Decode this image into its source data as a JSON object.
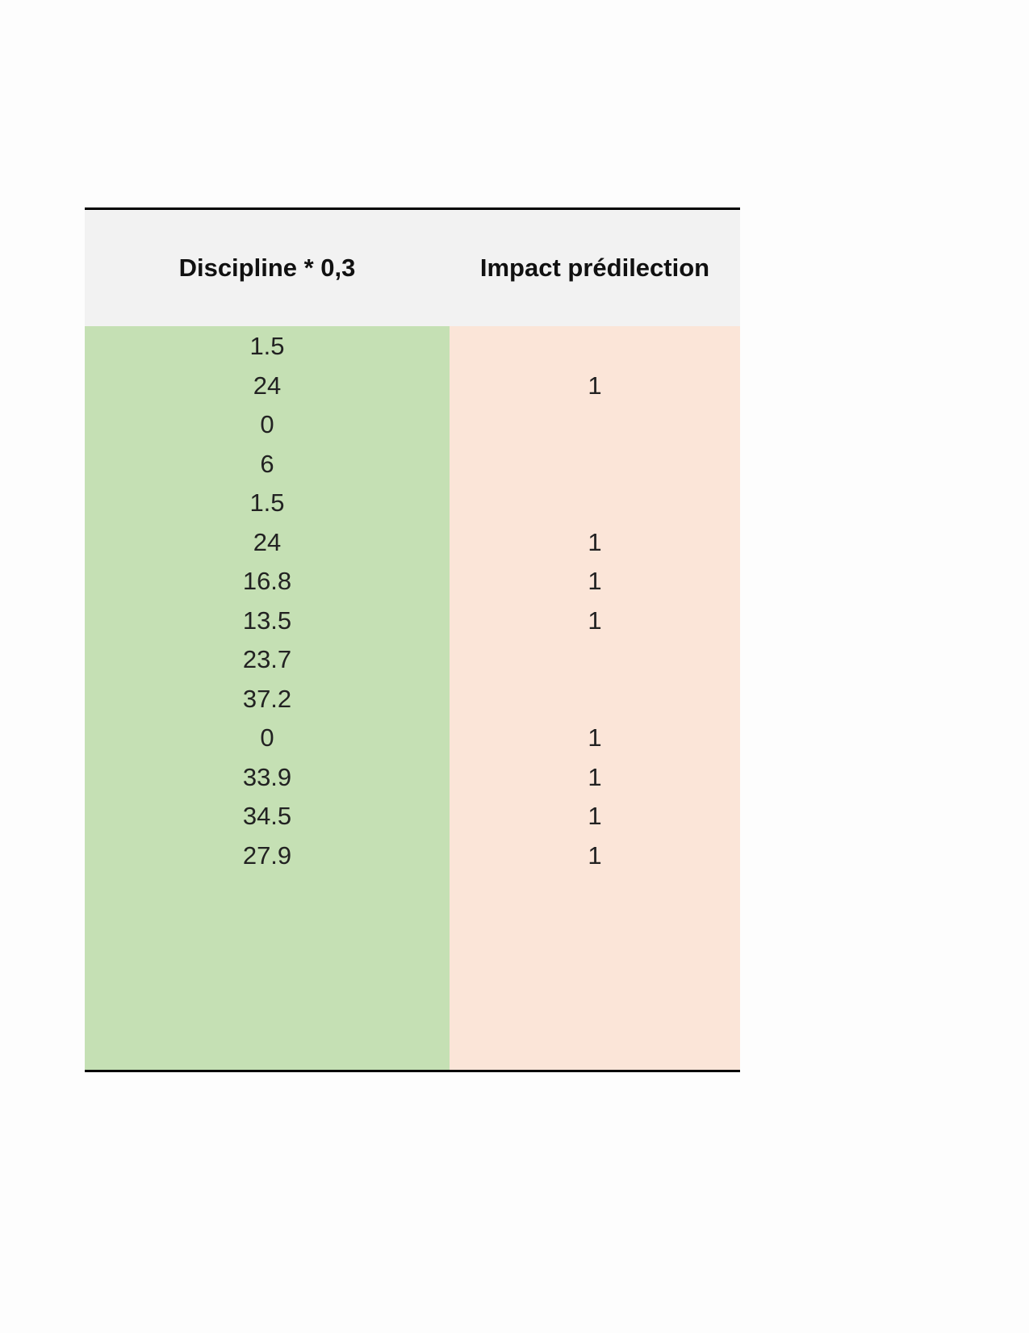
{
  "table": {
    "headers": [
      "Discipline * 0,3",
      "Impact prédilection"
    ],
    "rows": [
      [
        1.5,
        null
      ],
      [
        24,
        1
      ],
      [
        0,
        null
      ],
      [
        6,
        null
      ],
      [
        1.5,
        null
      ],
      [
        24,
        1
      ],
      [
        16.8,
        1
      ],
      [
        13.5,
        1
      ],
      [
        23.7,
        null
      ],
      [
        37.2,
        null
      ],
      [
        0,
        1
      ],
      [
        33.9,
        1
      ],
      [
        34.5,
        1
      ],
      [
        27.9,
        1
      ]
    ]
  }
}
